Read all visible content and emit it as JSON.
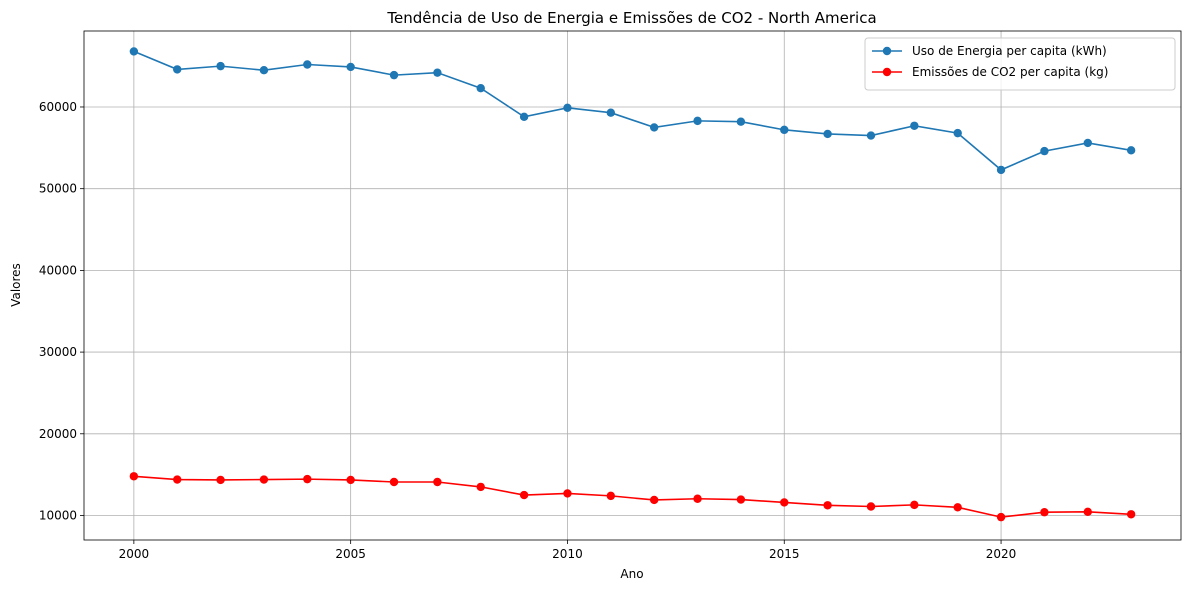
{
  "chart_data": {
    "type": "line",
    "title": "Tendência de Uso de Energia e Emissões de CO2 - North America",
    "xlabel": "Ano",
    "ylabel": "Valores",
    "x": [
      2000,
      2001,
      2002,
      2003,
      2004,
      2005,
      2006,
      2007,
      2008,
      2009,
      2010,
      2011,
      2012,
      2013,
      2014,
      2015,
      2016,
      2017,
      2018,
      2019,
      2020,
      2021,
      2022,
      2023
    ],
    "xlim": [
      1998.85,
      2024.15
    ],
    "ylim": [
      7000,
      69300
    ],
    "xticks": [
      2000,
      2005,
      2010,
      2015,
      2020
    ],
    "yticks": [
      10000,
      20000,
      30000,
      40000,
      50000,
      60000
    ],
    "grid": true,
    "legend_position": "top-right",
    "series": [
      {
        "name": "Uso de Energia per capita (kWh)",
        "color": "#1f77b4",
        "values": [
          66800,
          64600,
          65000,
          64500,
          65200,
          64900,
          63900,
          64200,
          62300,
          58800,
          59900,
          59300,
          57500,
          58300,
          58200,
          57200,
          56700,
          56500,
          57700,
          56800,
          52300,
          54600,
          55600,
          54700
        ]
      },
      {
        "name": "Emissões de CO2 per capita (kg)",
        "color": "#ff0000",
        "values": [
          14800,
          14400,
          14350,
          14400,
          14450,
          14350,
          14100,
          14100,
          13500,
          12500,
          12700,
          12400,
          11900,
          12050,
          11950,
          11600,
          11250,
          11100,
          11300,
          11000,
          9800,
          10400,
          10450,
          10150
        ]
      }
    ]
  }
}
